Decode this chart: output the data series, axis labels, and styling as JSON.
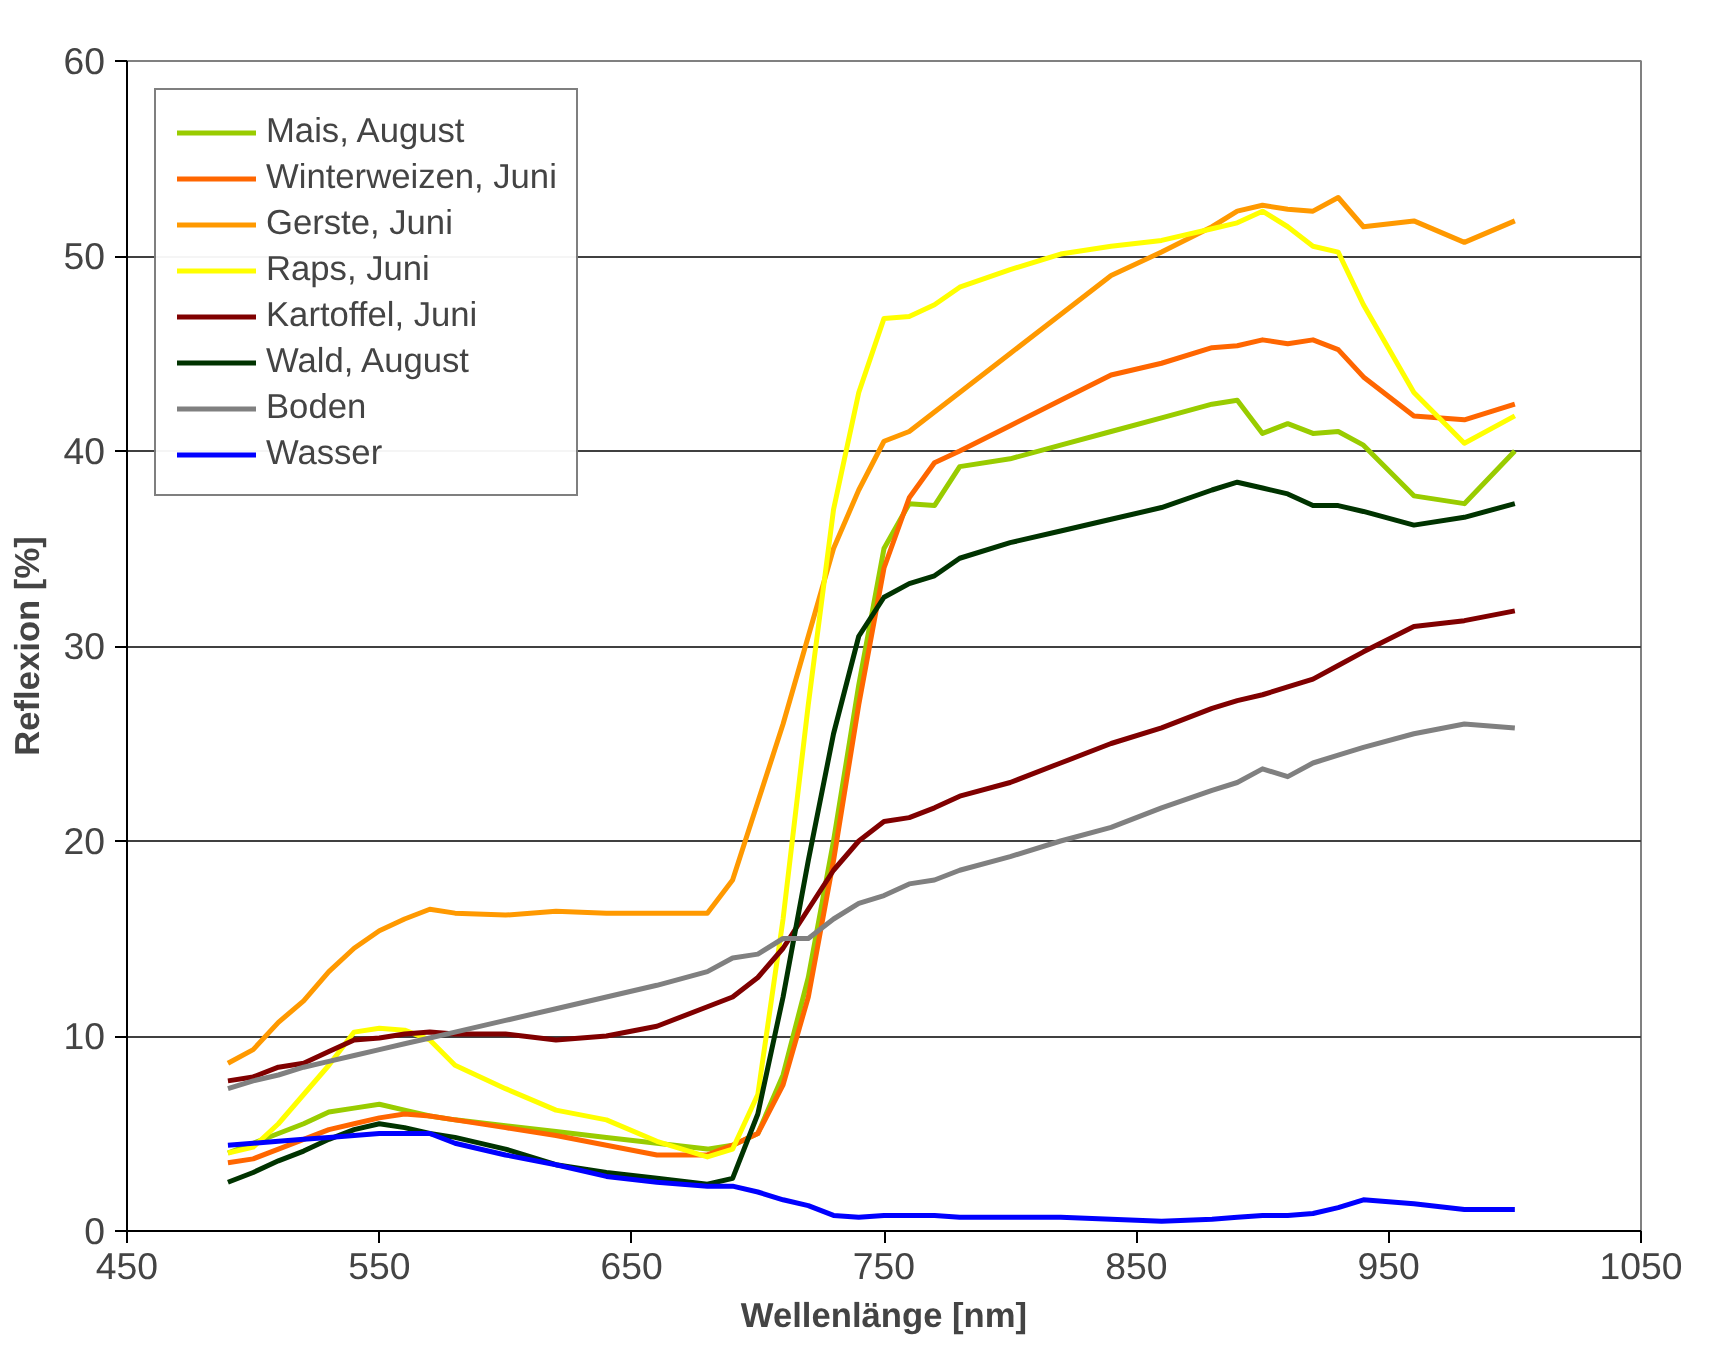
{
  "chart_data": {
    "type": "line",
    "xlabel": "Wellenlänge [nm]",
    "ylabel": "Reflexion [%]",
    "x": [
      490,
      500,
      510,
      520,
      530,
      540,
      550,
      560,
      570,
      580,
      600,
      620,
      640,
      660,
      680,
      690,
      700,
      710,
      720,
      730,
      740,
      750,
      760,
      770,
      780,
      800,
      820,
      840,
      860,
      880,
      890,
      900,
      910,
      920,
      930,
      940,
      960,
      980,
      1000
    ],
    "series": [
      {
        "name": "Mais, August",
        "color": "#99cc00",
        "values": [
          4.0,
          4.5,
          5,
          5.5,
          6.1,
          6.3,
          6.5,
          6.2,
          5.9,
          5.7,
          5.4,
          5.1,
          4.8,
          4.5,
          4.2,
          4.4,
          5,
          8,
          13,
          20,
          28,
          35,
          37.3,
          37.2,
          39.2,
          39.6,
          40.3,
          41,
          41.7,
          42.4,
          42.6,
          40.9,
          41.4,
          40.9,
          41,
          40.3,
          37.7,
          37.3,
          40
        ]
      },
      {
        "name": "Winterweizen, Juni",
        "color": "#ff6600",
        "values": [
          3.5,
          3.7,
          4.2,
          4.7,
          5.2,
          5.5,
          5.8,
          6.0,
          5.9,
          5.7,
          5.3,
          4.9,
          4.4,
          3.9,
          3.9,
          4.4,
          5,
          7.5,
          12,
          19,
          27,
          34,
          37.6,
          39.4,
          40,
          41.3,
          42.6,
          43.9,
          44.5,
          45.3,
          45.4,
          45.7,
          45.5,
          45.7,
          45.2,
          43.8,
          41.8,
          41.6,
          42.4
        ]
      },
      {
        "name": "Gerste, Juni",
        "color": "#ff9900",
        "values": [
          8.6,
          9.3,
          10.7,
          11.8,
          13.3,
          14.5,
          15.4,
          16.0,
          16.5,
          16.3,
          16.2,
          16.4,
          16.3,
          16.3,
          16.3,
          18,
          22,
          26,
          30.5,
          35,
          38,
          40.5,
          41,
          42,
          43,
          45,
          47,
          49,
          50.2,
          51.5,
          52.3,
          52.6,
          52.4,
          52.3,
          53.0,
          51.5,
          51.8,
          50.7,
          51.8
        ]
      },
      {
        "name": "Raps, Juni",
        "color": "#ffff00",
        "values": [
          4,
          4.3,
          5.5,
          7,
          8.5,
          10.2,
          10.4,
          10.3,
          9.8,
          8.5,
          7.3,
          6.2,
          5.7,
          4.6,
          3.8,
          4.2,
          7,
          16,
          27,
          37,
          43,
          46.8,
          46.9,
          47.5,
          48.4,
          49.3,
          50.1,
          50.5,
          50.8,
          51.4,
          51.7,
          52.3,
          51.5,
          50.5,
          50.2,
          47.5,
          43,
          40.4,
          41.8
        ]
      },
      {
        "name": "Kartoffel, Juni",
        "color": "#800000",
        "values": [
          7.7,
          7.9,
          8.4,
          8.6,
          9.2,
          9.8,
          9.9,
          10.1,
          10.2,
          10.1,
          10.1,
          9.8,
          10,
          10.5,
          11.5,
          12,
          13,
          14.5,
          16.5,
          18.5,
          20,
          21,
          21.2,
          21.7,
          22.3,
          23,
          24,
          25,
          25.8,
          26.8,
          27.2,
          27.5,
          27.9,
          28.3,
          29,
          29.7,
          31,
          31.3,
          31.8
        ]
      },
      {
        "name": "Wald, August",
        "color": "#003300",
        "values": [
          2.5,
          3,
          3.6,
          4.1,
          4.7,
          5.2,
          5.5,
          5.3,
          5.0,
          4.8,
          4.2,
          3.4,
          3.0,
          2.7,
          2.4,
          2.7,
          6,
          12,
          19,
          25.5,
          30.5,
          32.5,
          33.2,
          33.6,
          34.5,
          35.3,
          35.9,
          36.5,
          37.1,
          38,
          38.4,
          38.1,
          37.8,
          37.2,
          37.2,
          36.9,
          36.2,
          36.6,
          37.3
        ]
      },
      {
        "name": "Boden",
        "color": "#808080",
        "values": [
          7.3,
          7.7,
          8,
          8.4,
          8.7,
          9,
          9.3,
          9.6,
          9.9,
          10.2,
          10.8,
          11.4,
          12,
          12.6,
          13.3,
          14,
          14.2,
          15,
          15,
          16,
          16.8,
          17.2,
          17.8,
          18,
          18.5,
          19.2,
          20,
          20.7,
          21.7,
          22.6,
          23,
          23.7,
          23.3,
          24,
          24.4,
          24.8,
          25.5,
          26,
          25.8
        ]
      },
      {
        "name": "Wasser",
        "color": "#0000ff",
        "values": [
          4.4,
          4.5,
          4.6,
          4.7,
          4.8,
          4.9,
          5,
          5,
          5,
          4.5,
          3.9,
          3.4,
          2.8,
          2.5,
          2.3,
          2.3,
          2.0,
          1.6,
          1.3,
          0.8,
          0.7,
          0.8,
          0.8,
          0.8,
          0.7,
          0.7,
          0.7,
          0.6,
          0.5,
          0.6,
          0.7,
          0.8,
          0.8,
          0.9,
          1.2,
          1.6,
          1.4,
          1.1,
          1.1
        ]
      }
    ],
    "xlim": [
      450,
      1050
    ],
    "xticks": [
      450,
      550,
      650,
      750,
      850,
      950,
      1050
    ],
    "ylim": [
      0,
      60
    ],
    "yticks": [
      0,
      10,
      20,
      30,
      40,
      50,
      60
    ],
    "grid": "y",
    "legend": "top left",
    "marker": "none",
    "line_style": "solid"
  }
}
